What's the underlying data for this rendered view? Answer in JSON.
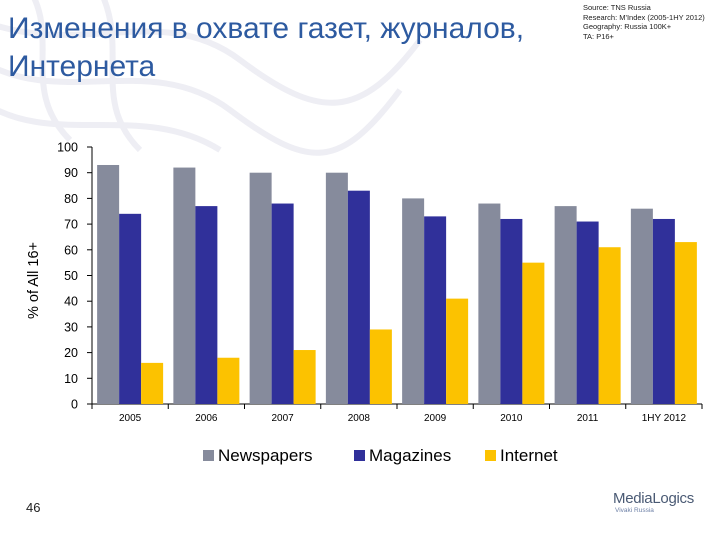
{
  "slide": {
    "title": "Изменения в охвате газет, журналов, Интернета",
    "source_lines": [
      "Source: TNS Russia",
      "Research: M'Index (2005-1HY 2012)",
      "Geography: Russia 100K+",
      "TA: P16+"
    ],
    "slide_number": "46",
    "logo": {
      "main": "MediaLogics",
      "sub": "Vivaki Russia"
    }
  },
  "colors": {
    "Newspapers": "#868b9c",
    "Magazines": "#30309a",
    "Internet": "#fcc200",
    "title": "#2d5aa0"
  },
  "chart_data": {
    "type": "bar",
    "title": "",
    "xlabel": "",
    "ylabel": "% of All 16+",
    "ylim": [
      0,
      100
    ],
    "yticks": [
      0,
      10,
      20,
      30,
      40,
      50,
      60,
      70,
      80,
      90,
      100
    ],
    "grid": false,
    "legend_position": "bottom",
    "categories": [
      "2005",
      "2006",
      "2007",
      "2008",
      "2009",
      "2010",
      "2011",
      "1HY 2012"
    ],
    "series": [
      {
        "name": "Newspapers",
        "values": [
          93,
          92,
          90,
          90,
          80,
          78,
          77,
          76
        ]
      },
      {
        "name": "Magazines",
        "values": [
          74,
          77,
          78,
          83,
          73,
          72,
          71,
          72
        ]
      },
      {
        "name": "Internet",
        "values": [
          16,
          18,
          21,
          29,
          41,
          55,
          61,
          63
        ]
      }
    ]
  }
}
